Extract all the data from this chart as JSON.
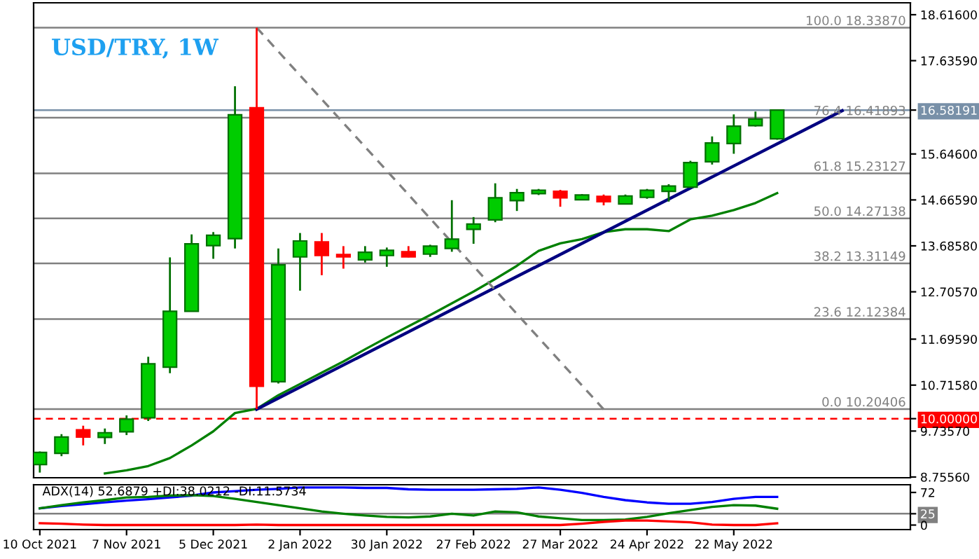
{
  "chart_data": [
    {
      "type": "candlestick",
      "title": "USD/TRY, 1W",
      "x": [
        "2021-10-10",
        "2021-10-17",
        "2021-10-24",
        "2021-10-31",
        "2021-11-07",
        "2021-11-14",
        "2021-11-21",
        "2021-11-28",
        "2021-12-05",
        "2021-12-12",
        "2021-12-19",
        "2021-12-26",
        "2022-01-02",
        "2022-01-09",
        "2022-01-16",
        "2022-01-23",
        "2022-01-30",
        "2022-02-06",
        "2022-02-13",
        "2022-02-20",
        "2022-02-27",
        "2022-03-06",
        "2022-03-13",
        "2022-03-20",
        "2022-03-27",
        "2022-04-03",
        "2022-04-10",
        "2022-04-17",
        "2022-04-24",
        "2022-05-01",
        "2022-05-08",
        "2022-05-15",
        "2022-05-22",
        "2022-05-29",
        "2022-06-05"
      ],
      "ohlc": [
        [
          9.02,
          9.3,
          8.85,
          9.28
        ],
        [
          9.26,
          9.67,
          9.2,
          9.61
        ],
        [
          9.76,
          9.85,
          9.43,
          9.61
        ],
        [
          9.6,
          9.79,
          9.46,
          9.7
        ],
        [
          9.72,
          10.07,
          9.65,
          9.99
        ],
        [
          10.02,
          11.32,
          9.95,
          11.17
        ],
        [
          11.1,
          13.44,
          10.97,
          12.29
        ],
        [
          12.29,
          13.93,
          12.29,
          13.73
        ],
        [
          13.69,
          13.98,
          13.41,
          13.91
        ],
        [
          13.84,
          17.09,
          13.63,
          16.48
        ],
        [
          16.63,
          18.3387,
          10.20406,
          10.69
        ],
        [
          10.79,
          13.63,
          10.75,
          13.28
        ],
        [
          13.45,
          13.96,
          12.73,
          13.79
        ],
        [
          13.77,
          13.96,
          13.06,
          13.48
        ],
        [
          13.5,
          13.68,
          13.2,
          13.45
        ],
        [
          13.39,
          13.68,
          13.33,
          13.55
        ],
        [
          13.48,
          13.65,
          13.24,
          13.59
        ],
        [
          13.56,
          13.68,
          13.44,
          13.45
        ],
        [
          13.51,
          13.71,
          13.45,
          13.68
        ],
        [
          13.63,
          14.66,
          13.56,
          13.83
        ],
        [
          14.04,
          14.3,
          13.73,
          14.15
        ],
        [
          14.24,
          15.02,
          14.19,
          14.71
        ],
        [
          14.65,
          14.9,
          14.43,
          14.82
        ],
        [
          14.8,
          14.9,
          14.77,
          14.87
        ],
        [
          14.85,
          14.88,
          14.52,
          14.71
        ],
        [
          14.67,
          14.79,
          14.67,
          14.77
        ],
        [
          14.74,
          14.78,
          14.55,
          14.63
        ],
        [
          14.58,
          14.78,
          14.58,
          14.75
        ],
        [
          14.72,
          14.9,
          14.69,
          14.87
        ],
        [
          14.85,
          15.0,
          14.63,
          14.96
        ],
        [
          14.94,
          15.5,
          14.94,
          15.46
        ],
        [
          15.48,
          16.02,
          15.42,
          15.88
        ],
        [
          15.87,
          16.49,
          15.65,
          16.24
        ],
        [
          16.25,
          16.55,
          16.23,
          16.39
        ],
        [
          15.97,
          16.58191,
          15.95,
          16.58191
        ]
      ],
      "colors": [
        "#00cc00",
        "#00cc00",
        "#ff0000",
        "#00cc00",
        "#00cc00",
        "#00cc00",
        "#00cc00",
        "#00cc00",
        "#00cc00",
        "#00cc00",
        "#ff0000",
        "#00cc00",
        "#00cc00",
        "#ff0000",
        "#ff0000",
        "#00cc00",
        "#00cc00",
        "#ff0000",
        "#00cc00",
        "#00cc00",
        "#00cc00",
        "#00cc00",
        "#00cc00",
        "#00cc00",
        "#ff0000",
        "#00cc00",
        "#ff0000",
        "#00cc00",
        "#00cc00",
        "#00cc00",
        "#00cc00",
        "#00cc00",
        "#00cc00",
        "#00cc00",
        "#00cc00"
      ],
      "series": [
        {
          "type": "line",
          "color": "#008000",
          "x": [
            "2021-10-31",
            "2021-11-07",
            "2021-11-14",
            "2021-11-21",
            "2021-11-28",
            "2021-12-05",
            "2021-12-12",
            "2021-12-19",
            "2021-12-26",
            "2022-01-02",
            "2022-01-09",
            "2022-01-16",
            "2022-01-23",
            "2022-01-30",
            "2022-02-06",
            "2022-02-13",
            "2022-02-20",
            "2022-02-27",
            "2022-03-06",
            "2022-03-13",
            "2022-03-20",
            "2022-03-27",
            "2022-04-03",
            "2022-04-10",
            "2022-04-17",
            "2022-04-24",
            "2022-05-01",
            "2022-05-08",
            "2022-05-15",
            "2022-05-22",
            "2022-05-29",
            "2022-06-05"
          ],
          "values": [
            8.83,
            8.9,
            8.99,
            9.16,
            9.43,
            9.73,
            10.12,
            10.21,
            10.5,
            10.74,
            10.98,
            11.22,
            11.48,
            11.73,
            11.97,
            12.21,
            12.46,
            12.71,
            12.98,
            13.26,
            13.58,
            13.74,
            13.83,
            13.98,
            14.04,
            14.04,
            14.0,
            14.25,
            14.33,
            14.45,
            14.6,
            14.81
          ]
        },
        {
          "type": "line",
          "color": "#000080",
          "x": [
            "2021-12-19",
            "2022-06-26"
          ],
          "values": [
            10.2,
            16.57
          ]
        },
        {
          "type": "line",
          "color": "#808080",
          "line_style": "dashed",
          "x": [
            "2021-12-19",
            "2022-04-10"
          ],
          "values": [
            18.34,
            10.2
          ]
        }
      ],
      "ref_lines": [
        {
          "axis": "y",
          "value": 18.3387,
          "label": "100.0 18.33870",
          "color": "#808080"
        },
        {
          "axis": "y",
          "value": 16.41893,
          "label": "76.4 16.41893",
          "color": "#808080"
        },
        {
          "axis": "y",
          "value": 15.23127,
          "label": "61.8 15.23127",
          "color": "#808080"
        },
        {
          "axis": "y",
          "value": 14.27138,
          "label": "50.0 14.27138",
          "color": "#808080"
        },
        {
          "axis": "y",
          "value": 13.31149,
          "label": "38.2 13.31149",
          "color": "#808080"
        },
        {
          "axis": "y",
          "value": 12.12384,
          "label": "23.6 12.12384",
          "color": "#808080"
        },
        {
          "axis": "y",
          "value": 10.20406,
          "label": "0.0 10.20406",
          "color": "#808080"
        },
        {
          "axis": "y",
          "value": 16.58191,
          "color": "#7890a8"
        },
        {
          "axis": "y",
          "value": 10.0,
          "color": "#ff0000",
          "line_style": "dashed"
        }
      ],
      "xlim": [
        "2021-10-08",
        "2022-07-18"
      ],
      "ylim": [
        8.74,
        18.87
      ],
      "yticks": [
        {
          "value": 18.616,
          "label": "18.61600"
        },
        {
          "value": 17.6359,
          "label": "17.63590"
        },
        {
          "value": 16.58191,
          "label": "16.58191"
        },
        {
          "value": 15.646,
          "label": "15.64600"
        },
        {
          "value": 14.6659,
          "label": "14.66590"
        },
        {
          "value": 13.6858,
          "label": "13.68580"
        },
        {
          "value": 12.7057,
          "label": "12.70570"
        },
        {
          "value": 11.6959,
          "label": "11.69590"
        },
        {
          "value": 10.7158,
          "label": "10.71580"
        },
        {
          "value": 10.0,
          "label": "10.00000"
        },
        {
          "value": 9.7357,
          "label": "9.73570"
        },
        {
          "value": 8.7556,
          "label": "8.75560"
        }
      ],
      "tick_labels": "y"
    },
    {
      "type": "line",
      "annotations": [
        "ADX(14) 52.6879 +DI:38.0212 -DI:11.5734"
      ],
      "x": [
        "2021-10-10",
        "2021-10-17",
        "2021-10-24",
        "2021-10-31",
        "2021-11-07",
        "2021-11-14",
        "2021-11-21",
        "2021-11-28",
        "2021-12-05",
        "2021-12-12",
        "2021-12-19",
        "2021-12-26",
        "2022-01-02",
        "2022-01-09",
        "2022-01-16",
        "2022-01-23",
        "2022-01-30",
        "2022-02-06",
        "2022-02-13",
        "2022-02-20",
        "2022-02-27",
        "2022-03-06",
        "2022-03-13",
        "2022-03-20",
        "2022-03-27",
        "2022-04-03",
        "2022-04-10",
        "2022-04-17",
        "2022-04-24",
        "2022-05-01",
        "2022-05-08",
        "2022-05-15",
        "2022-05-22",
        "2022-05-29",
        "2022-06-05"
      ],
      "series": [
        {
          "color": "#0000ff",
          "values": [
            37,
            42,
            46,
            50,
            54,
            57,
            61,
            65,
            72,
            75,
            78,
            80,
            83,
            83,
            83,
            82,
            82,
            79,
            78,
            78,
            78,
            79,
            80,
            83,
            78,
            71,
            62,
            55,
            50,
            47,
            47,
            51,
            58,
            62,
            62
          ]
        },
        {
          "color": "#008000",
          "values": [
            37,
            44,
            50,
            55,
            61,
            62,
            65,
            66,
            64,
            58,
            51,
            44,
            37,
            30,
            25,
            21,
            18,
            17,
            19,
            25,
            21,
            30,
            28,
            19,
            15,
            11,
            11,
            12,
            18,
            26,
            33,
            40,
            44,
            43,
            36
          ]
        },
        {
          "color": "#ff0000",
          "values": [
            4,
            3,
            1,
            0,
            0,
            0,
            0,
            0,
            0,
            0,
            1,
            0,
            0,
            0,
            0,
            0,
            0,
            0,
            0,
            0,
            0,
            0,
            0,
            0,
            0,
            3,
            7,
            10,
            10,
            8,
            6,
            1,
            0,
            0,
            4
          ]
        }
      ],
      "ref_lines": [
        {
          "axis": "y",
          "value": 25,
          "color": "#808080"
        }
      ],
      "xlim": [
        "2021-10-08",
        "2022-07-18"
      ],
      "ylim": [
        -10,
        89
      ],
      "yticks": [
        72,
        25,
        0
      ],
      "xticks": [
        {
          "value": "2021-10-10",
          "label": "10 Oct 2021"
        },
        {
          "value": "2021-11-07",
          "label": "7 Nov 2021"
        },
        {
          "value": "2021-12-05",
          "label": "5 Dec 2021"
        },
        {
          "value": "2022-01-02",
          "label": "2 Jan 2022"
        },
        {
          "value": "2022-01-30",
          "label": "30 Jan 2022"
        },
        {
          "value": "2022-02-27",
          "label": "27 Feb 2022"
        },
        {
          "value": "2022-03-27",
          "label": "27 Mar 2022"
        },
        {
          "value": "2022-04-24",
          "label": "24 Apr 2022"
        },
        {
          "value": "2022-05-22",
          "label": "22 May 2022"
        }
      ]
    }
  ]
}
